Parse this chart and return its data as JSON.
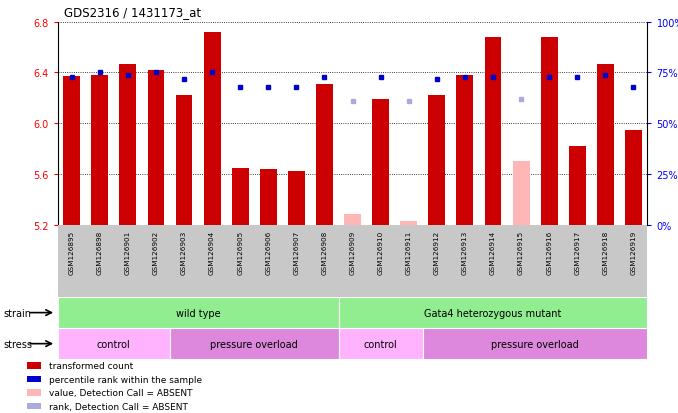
{
  "title": "GDS2316 / 1431173_at",
  "samples": [
    "GSM126895",
    "GSM126898",
    "GSM126901",
    "GSM126902",
    "GSM126903",
    "GSM126904",
    "GSM126905",
    "GSM126906",
    "GSM126907",
    "GSM126908",
    "GSM126909",
    "GSM126910",
    "GSM126911",
    "GSM126912",
    "GSM126913",
    "GSM126914",
    "GSM126915",
    "GSM126916",
    "GSM126917",
    "GSM126918",
    "GSM126919"
  ],
  "bar_values": [
    6.37,
    6.38,
    6.47,
    6.42,
    6.22,
    6.72,
    5.65,
    5.64,
    5.62,
    6.31,
    null,
    6.19,
    null,
    6.22,
    6.38,
    6.68,
    null,
    6.68,
    5.82,
    6.47,
    5.95
  ],
  "absent_bar_values": [
    null,
    null,
    null,
    null,
    null,
    null,
    null,
    null,
    null,
    null,
    5.28,
    null,
    5.23,
    null,
    null,
    null,
    5.7,
    null,
    null,
    null,
    null
  ],
  "percentile_values": [
    73,
    75,
    74,
    75,
    72,
    75,
    68,
    68,
    68,
    73,
    null,
    73,
    null,
    72,
    73,
    73,
    null,
    73,
    73,
    74,
    68
  ],
  "absent_percentile_values": [
    null,
    null,
    null,
    null,
    null,
    null,
    null,
    null,
    null,
    null,
    61,
    null,
    61,
    null,
    null,
    null,
    62,
    null,
    null,
    null,
    null
  ],
  "absent_flags": [
    false,
    false,
    false,
    false,
    false,
    false,
    false,
    false,
    false,
    false,
    true,
    false,
    true,
    false,
    false,
    false,
    true,
    false,
    false,
    false,
    false
  ],
  "strain_groups": [
    {
      "label": "wild type",
      "start": 0,
      "end": 9,
      "color": "#90EE90"
    },
    {
      "label": "Gata4 heterozygous mutant",
      "start": 10,
      "end": 20,
      "color": "#90EE90"
    }
  ],
  "stress_groups": [
    {
      "label": "control",
      "start": 0,
      "end": 3,
      "color": "#FFB3FF"
    },
    {
      "label": "pressure overload",
      "start": 4,
      "end": 9,
      "color": "#DD88DD"
    },
    {
      "label": "control",
      "start": 10,
      "end": 12,
      "color": "#FFB3FF"
    },
    {
      "label": "pressure overload",
      "start": 13,
      "end": 20,
      "color": "#DD88DD"
    }
  ],
  "ylim_left": [
    5.2,
    6.8
  ],
  "ylim_right": [
    0,
    100
  ],
  "yticks_left": [
    5.2,
    5.6,
    6.0,
    6.4,
    6.8
  ],
  "yticks_right": [
    0,
    25,
    50,
    75,
    100
  ],
  "bar_color": "#CC0000",
  "absent_bar_color": "#FFB6B6",
  "rank_marker_color": "#0000CC",
  "absent_rank_color": "#AAAADD",
  "background_color": "#FFFFFF"
}
